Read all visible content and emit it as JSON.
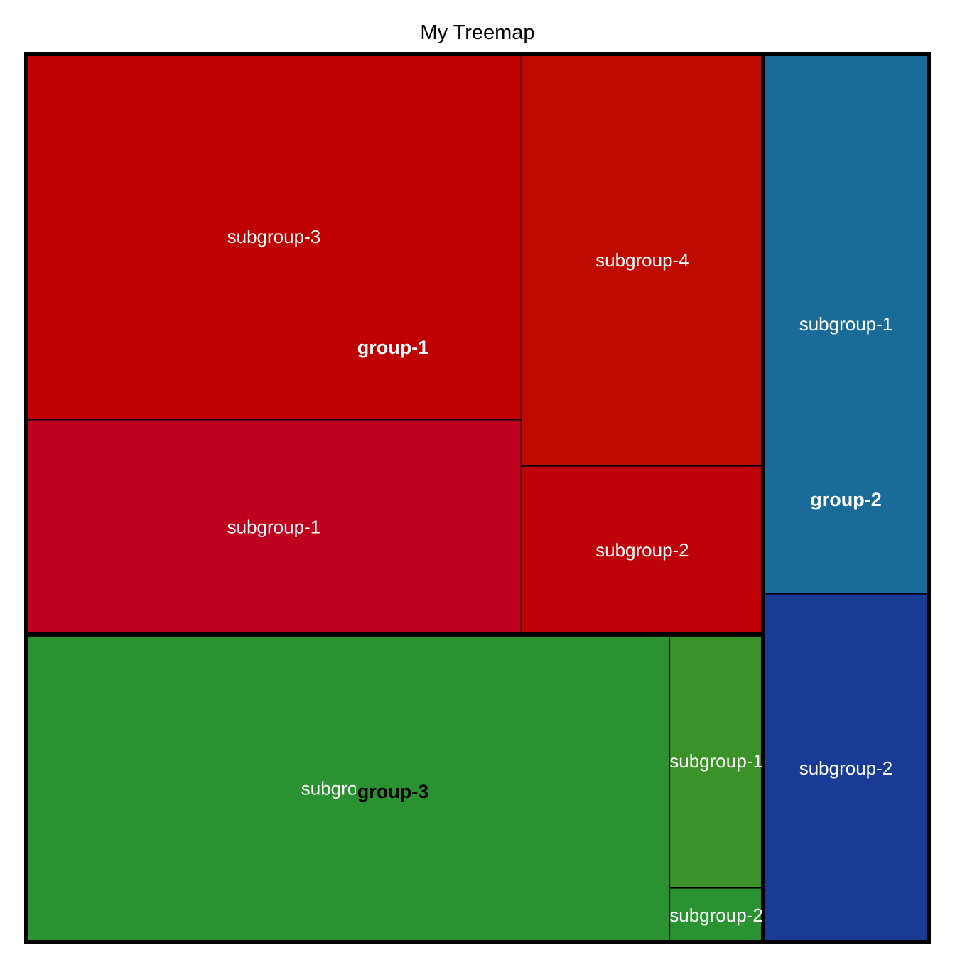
{
  "chart_data": {
    "type": "treemap",
    "title": "My Treemap",
    "groups": [
      {
        "name": "group-1",
        "color": "#be0000",
        "subgroups": [
          {
            "name": "subgroup-3",
            "value": 16,
            "color": "#be0000"
          },
          {
            "name": "subgroup-1",
            "value": 9.4,
            "color": "#be001e"
          },
          {
            "name": "subgroup-4",
            "value": 8.8,
            "color": "#be0a00"
          },
          {
            "name": "subgroup-2",
            "value": 3.6,
            "color": "#be0008"
          }
        ]
      },
      {
        "name": "group-2",
        "color": "#1b6b99",
        "subgroups": [
          {
            "name": "subgroup-1",
            "value": 7.9,
            "color": "#1b6b99"
          },
          {
            "name": "subgroup-2",
            "value": 5.1,
            "color": "#193b96"
          }
        ]
      },
      {
        "name": "group-3",
        "color": "#2a9231",
        "subgroups": [
          {
            "name": "subgroup-3",
            "value": 17.5,
            "color": "#2a9231"
          },
          {
            "name": "subgroup-1",
            "value": 2.1,
            "color": "#3b9229"
          },
          {
            "name": "subgroup-2",
            "value": 0.45,
            "color": "#2a9231"
          }
        ]
      }
    ]
  }
}
